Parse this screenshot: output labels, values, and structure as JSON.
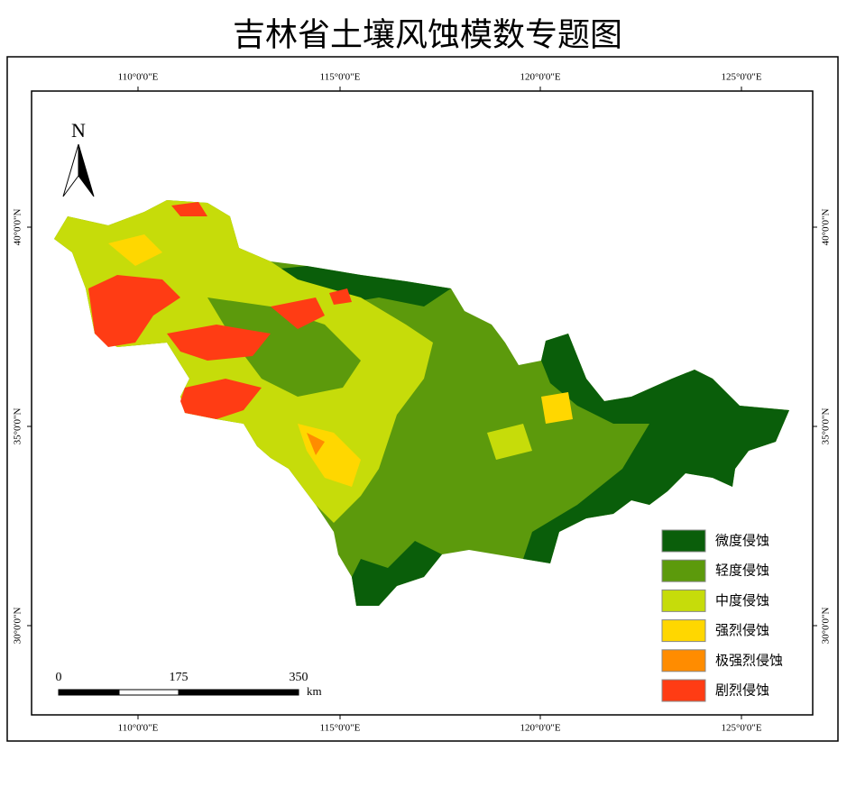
{
  "title": "吉林省土壤风蚀模数专题图",
  "north": "N",
  "graticule": {
    "longitudes": [
      "110°0'0\"E",
      "115°0'0\"E",
      "120°0'0\"E",
      "125°0'0\"E"
    ],
    "latitudes": [
      "40°0'0\"N",
      "35°0'0\"N",
      "30°0'0\"N"
    ]
  },
  "legend": [
    {
      "label": "微度侵蚀",
      "color": "#0a5e0a"
    },
    {
      "label": "轻度侵蚀",
      "color": "#5c9a0c"
    },
    {
      "label": "中度侵蚀",
      "color": "#c6dc0a"
    },
    {
      "label": "强烈侵蚀",
      "color": "#ffd700"
    },
    {
      "label": "极强烈侵蚀",
      "color": "#ff8c00"
    },
    {
      "label": "剧烈侵蚀",
      "color": "#ff3c14"
    }
  ],
  "scale_bar": {
    "labels": [
      "0",
      "175",
      "350"
    ],
    "unit": "km"
  }
}
